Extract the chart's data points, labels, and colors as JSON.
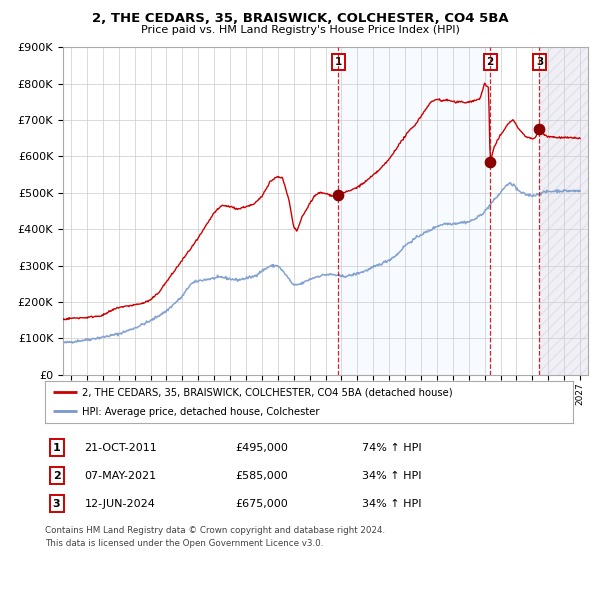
{
  "title": "2, THE CEDARS, 35, BRAISWICK, COLCHESTER, CO4 5BA",
  "subtitle": "Price paid vs. HM Land Registry's House Price Index (HPI)",
  "legend_red": "2, THE CEDARS, 35, BRAISWICK, COLCHESTER, CO4 5BA (detached house)",
  "legend_blue": "HPI: Average price, detached house, Colchester",
  "footnote1": "Contains HM Land Registry data © Crown copyright and database right 2024.",
  "footnote2": "This data is licensed under the Open Government Licence v3.0.",
  "transactions": [
    {
      "num": 1,
      "date": "21-OCT-2011",
      "price": 495000,
      "pct": "74%",
      "direction": "↑"
    },
    {
      "num": 2,
      "date": "07-MAY-2021",
      "price": 585000,
      "pct": "34%",
      "direction": "↑"
    },
    {
      "num": 3,
      "date": "12-JUN-2024",
      "price": 675000,
      "pct": "34%",
      "direction": "↑"
    }
  ],
  "transaction_dates_numeric": [
    2011.81,
    2021.35,
    2024.45
  ],
  "transaction_prices": [
    495000,
    585000,
    675000
  ],
  "ylim": [
    0,
    900000
  ],
  "xlim_start": 1994.5,
  "xlim_end": 2027.5,
  "red_color": "#cc0000",
  "blue_color": "#7799cc",
  "dot_color": "#8b0000",
  "bg_color": "#ffffff",
  "grid_color": "#cccccc",
  "shade_color": "#ddeeff",
  "dashed_line_color": "#cc0000"
}
